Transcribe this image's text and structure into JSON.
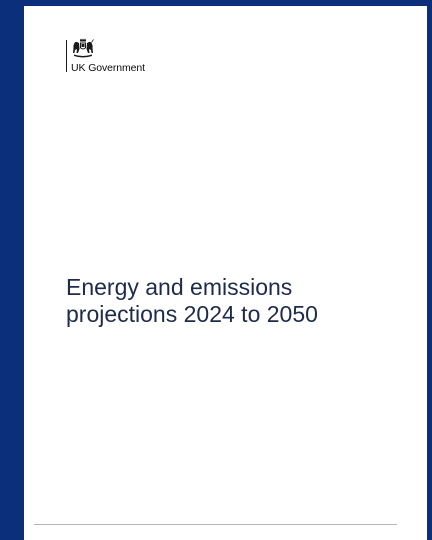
{
  "logo": {
    "wordmark": "UK Government",
    "icon": "royal-coat-of-arms-icon"
  },
  "document": {
    "title_line_1": "Energy and emissions",
    "title_line_2": "projections 2024 to 2050"
  },
  "colors": {
    "background": "#0b2f7a",
    "page": "#ffffff",
    "title_text": "#1f2b4a"
  }
}
